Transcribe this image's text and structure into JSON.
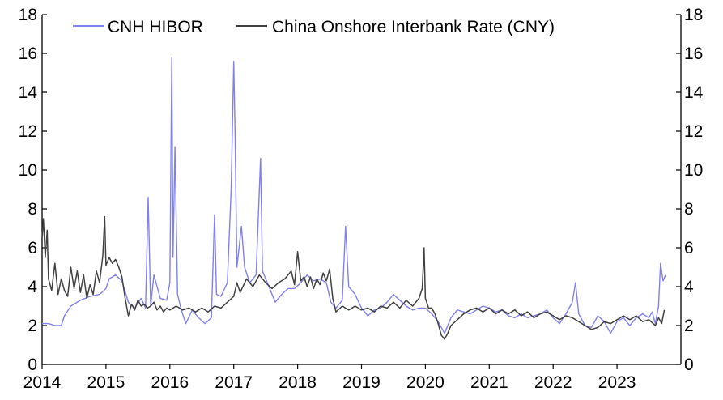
{
  "chart_data": {
    "type": "line",
    "title": "",
    "xlabel": "",
    "ylabel": "",
    "x_ticks": [
      "2014",
      "2015",
      "2016",
      "2017",
      "2018",
      "2019",
      "2020",
      "2021",
      "2022",
      "2023"
    ],
    "xlim": [
      2014.0,
      2024.0
    ],
    "ylim": [
      0,
      18
    ],
    "y_ticks": [
      0,
      2,
      4,
      6,
      8,
      10,
      12,
      14,
      16,
      18
    ],
    "y_tick_labels": [
      "0",
      "2",
      "4",
      "6",
      "8",
      "10",
      "12",
      "14",
      "16",
      "18"
    ],
    "secondary_y_axis": true,
    "grid": false,
    "legend_position": "top",
    "series": [
      {
        "name": "CNH HIBOR",
        "color": "#8080f0",
        "points": [
          [
            2014.0,
            2.1
          ],
          [
            2014.1,
            2.1
          ],
          [
            2014.2,
            2.0
          ],
          [
            2014.3,
            2.0
          ],
          [
            2014.35,
            2.5
          ],
          [
            2014.45,
            3.0
          ],
          [
            2014.6,
            3.3
          ],
          [
            2014.75,
            3.5
          ],
          [
            2014.9,
            3.6
          ],
          [
            2015.0,
            3.9
          ],
          [
            2015.05,
            4.4
          ],
          [
            2015.15,
            4.6
          ],
          [
            2015.25,
            4.3
          ],
          [
            2015.35,
            3.2
          ],
          [
            2015.45,
            2.9
          ],
          [
            2015.55,
            3.4
          ],
          [
            2015.62,
            2.9
          ],
          [
            2015.66,
            8.6
          ],
          [
            2015.7,
            3.0
          ],
          [
            2015.75,
            4.6
          ],
          [
            2015.85,
            3.4
          ],
          [
            2015.95,
            3.3
          ],
          [
            2016.0,
            4.2
          ],
          [
            2016.03,
            15.8
          ],
          [
            2016.05,
            5.5
          ],
          [
            2016.08,
            11.2
          ],
          [
            2016.12,
            3.6
          ],
          [
            2016.18,
            2.8
          ],
          [
            2016.25,
            2.1
          ],
          [
            2016.35,
            2.8
          ],
          [
            2016.45,
            2.4
          ],
          [
            2016.55,
            2.1
          ],
          [
            2016.65,
            2.4
          ],
          [
            2016.7,
            7.7
          ],
          [
            2016.73,
            3.6
          ],
          [
            2016.8,
            3.5
          ],
          [
            2016.9,
            4.2
          ],
          [
            2016.96,
            9.0
          ],
          [
            2017.0,
            15.6
          ],
          [
            2017.02,
            12.0
          ],
          [
            2017.05,
            5.0
          ],
          [
            2017.12,
            7.1
          ],
          [
            2017.17,
            5.0
          ],
          [
            2017.25,
            4.2
          ],
          [
            2017.35,
            4.6
          ],
          [
            2017.42,
            10.6
          ],
          [
            2017.45,
            4.8
          ],
          [
            2017.55,
            4.0
          ],
          [
            2017.65,
            3.2
          ],
          [
            2017.75,
            3.6
          ],
          [
            2017.85,
            3.9
          ],
          [
            2017.95,
            3.9
          ],
          [
            2018.05,
            4.2
          ],
          [
            2018.15,
            4.6
          ],
          [
            2018.25,
            4.3
          ],
          [
            2018.35,
            4.4
          ],
          [
            2018.45,
            4.2
          ],
          [
            2018.52,
            3.2
          ],
          [
            2018.6,
            2.9
          ],
          [
            2018.7,
            3.3
          ],
          [
            2018.75,
            7.1
          ],
          [
            2018.8,
            4.0
          ],
          [
            2018.9,
            3.6
          ],
          [
            2019.0,
            2.9
          ],
          [
            2019.1,
            2.5
          ],
          [
            2019.2,
            2.8
          ],
          [
            2019.3,
            2.9
          ],
          [
            2019.4,
            3.2
          ],
          [
            2019.5,
            3.6
          ],
          [
            2019.6,
            3.3
          ],
          [
            2019.7,
            3.0
          ],
          [
            2019.8,
            2.8
          ],
          [
            2019.9,
            2.9
          ],
          [
            2020.0,
            2.9
          ],
          [
            2020.1,
            2.6
          ],
          [
            2020.2,
            2.2
          ],
          [
            2020.3,
            1.6
          ],
          [
            2020.4,
            2.4
          ],
          [
            2020.5,
            2.8
          ],
          [
            2020.6,
            2.7
          ],
          [
            2020.7,
            2.6
          ],
          [
            2020.8,
            2.8
          ],
          [
            2020.9,
            3.0
          ],
          [
            2021.0,
            2.9
          ],
          [
            2021.1,
            2.7
          ],
          [
            2021.2,
            2.8
          ],
          [
            2021.3,
            2.5
          ],
          [
            2021.4,
            2.4
          ],
          [
            2021.5,
            2.6
          ],
          [
            2021.6,
            2.4
          ],
          [
            2021.7,
            2.5
          ],
          [
            2021.8,
            2.6
          ],
          [
            2021.9,
            2.8
          ],
          [
            2022.0,
            2.4
          ],
          [
            2022.1,
            2.1
          ],
          [
            2022.2,
            2.6
          ],
          [
            2022.3,
            3.2
          ],
          [
            2022.35,
            4.2
          ],
          [
            2022.4,
            2.6
          ],
          [
            2022.5,
            2.0
          ],
          [
            2022.6,
            1.9
          ],
          [
            2022.7,
            2.5
          ],
          [
            2022.8,
            2.2
          ],
          [
            2022.9,
            1.6
          ],
          [
            2023.0,
            2.2
          ],
          [
            2023.1,
            2.4
          ],
          [
            2023.2,
            2.0
          ],
          [
            2023.3,
            2.4
          ],
          [
            2023.4,
            2.6
          ],
          [
            2023.5,
            2.4
          ],
          [
            2023.55,
            2.7
          ],
          [
            2023.6,
            2.1
          ],
          [
            2023.65,
            3.0
          ],
          [
            2023.68,
            5.2
          ],
          [
            2023.72,
            4.3
          ],
          [
            2023.76,
            4.6
          ]
        ]
      },
      {
        "name": "China Onshore Interbank Rate (CNY)",
        "color": "#404040",
        "points": [
          [
            2014.0,
            6.5
          ],
          [
            2014.02,
            7.5
          ],
          [
            2014.05,
            5.5
          ],
          [
            2014.08,
            6.9
          ],
          [
            2014.1,
            4.4
          ],
          [
            2014.15,
            3.8
          ],
          [
            2014.2,
            5.2
          ],
          [
            2014.25,
            3.6
          ],
          [
            2014.3,
            4.4
          ],
          [
            2014.35,
            3.8
          ],
          [
            2014.4,
            3.5
          ],
          [
            2014.45,
            5.0
          ],
          [
            2014.5,
            3.9
          ],
          [
            2014.55,
            4.8
          ],
          [
            2014.6,
            3.7
          ],
          [
            2014.65,
            4.6
          ],
          [
            2014.7,
            3.4
          ],
          [
            2014.75,
            4.1
          ],
          [
            2014.8,
            3.6
          ],
          [
            2014.85,
            4.8
          ],
          [
            2014.9,
            4.2
          ],
          [
            2014.95,
            5.6
          ],
          [
            2014.98,
            7.6
          ],
          [
            2015.0,
            5.1
          ],
          [
            2015.05,
            5.5
          ],
          [
            2015.1,
            5.2
          ],
          [
            2015.15,
            5.4
          ],
          [
            2015.2,
            5.0
          ],
          [
            2015.25,
            4.5
          ],
          [
            2015.3,
            3.4
          ],
          [
            2015.35,
            2.5
          ],
          [
            2015.4,
            3.1
          ],
          [
            2015.45,
            2.8
          ],
          [
            2015.5,
            3.3
          ],
          [
            2015.55,
            3.0
          ],
          [
            2015.6,
            3.1
          ],
          [
            2015.65,
            2.9
          ],
          [
            2015.7,
            3.0
          ],
          [
            2015.75,
            3.2
          ],
          [
            2015.8,
            2.8
          ],
          [
            2015.85,
            3.0
          ],
          [
            2015.9,
            2.7
          ],
          [
            2015.95,
            2.9
          ],
          [
            2016.0,
            2.8
          ],
          [
            2016.1,
            3.0
          ],
          [
            2016.2,
            2.8
          ],
          [
            2016.3,
            2.9
          ],
          [
            2016.4,
            2.7
          ],
          [
            2016.5,
            2.9
          ],
          [
            2016.6,
            2.7
          ],
          [
            2016.7,
            3.0
          ],
          [
            2016.8,
            2.9
          ],
          [
            2016.9,
            3.2
          ],
          [
            2017.0,
            3.5
          ],
          [
            2017.05,
            4.2
          ],
          [
            2017.1,
            3.7
          ],
          [
            2017.2,
            4.4
          ],
          [
            2017.3,
            4.0
          ],
          [
            2017.4,
            4.6
          ],
          [
            2017.5,
            4.2
          ],
          [
            2017.6,
            3.9
          ],
          [
            2017.7,
            4.2
          ],
          [
            2017.8,
            4.4
          ],
          [
            2017.9,
            4.8
          ],
          [
            2017.95,
            4.1
          ],
          [
            2018.0,
            5.8
          ],
          [
            2018.05,
            4.3
          ],
          [
            2018.1,
            4.5
          ],
          [
            2018.15,
            4.0
          ],
          [
            2018.2,
            4.5
          ],
          [
            2018.25,
            3.9
          ],
          [
            2018.3,
            4.4
          ],
          [
            2018.35,
            4.1
          ],
          [
            2018.4,
            4.7
          ],
          [
            2018.45,
            4.3
          ],
          [
            2018.5,
            4.9
          ],
          [
            2018.55,
            3.4
          ],
          [
            2018.6,
            2.7
          ],
          [
            2018.7,
            3.0
          ],
          [
            2018.8,
            2.8
          ],
          [
            2018.9,
            3.0
          ],
          [
            2019.0,
            2.8
          ],
          [
            2019.1,
            2.9
          ],
          [
            2019.2,
            2.7
          ],
          [
            2019.3,
            3.0
          ],
          [
            2019.4,
            2.9
          ],
          [
            2019.5,
            3.2
          ],
          [
            2019.6,
            2.9
          ],
          [
            2019.7,
            3.3
          ],
          [
            2019.8,
            3.0
          ],
          [
            2019.9,
            3.4
          ],
          [
            2019.95,
            3.9
          ],
          [
            2019.98,
            6.0
          ],
          [
            2020.0,
            3.4
          ],
          [
            2020.05,
            2.9
          ],
          [
            2020.1,
            2.9
          ],
          [
            2020.15,
            2.6
          ],
          [
            2020.2,
            2.1
          ],
          [
            2020.25,
            1.5
          ],
          [
            2020.3,
            1.3
          ],
          [
            2020.35,
            1.6
          ],
          [
            2020.4,
            2.0
          ],
          [
            2020.5,
            2.3
          ],
          [
            2020.6,
            2.6
          ],
          [
            2020.7,
            2.8
          ],
          [
            2020.8,
            2.9
          ],
          [
            2020.9,
            2.7
          ],
          [
            2021.0,
            2.9
          ],
          [
            2021.1,
            2.6
          ],
          [
            2021.2,
            2.8
          ],
          [
            2021.3,
            2.6
          ],
          [
            2021.4,
            2.8
          ],
          [
            2021.5,
            2.5
          ],
          [
            2021.6,
            2.7
          ],
          [
            2021.7,
            2.4
          ],
          [
            2021.8,
            2.6
          ],
          [
            2021.9,
            2.7
          ],
          [
            2022.0,
            2.5
          ],
          [
            2022.1,
            2.3
          ],
          [
            2022.2,
            2.5
          ],
          [
            2022.3,
            2.4
          ],
          [
            2022.4,
            2.2
          ],
          [
            2022.5,
            2.0
          ],
          [
            2022.6,
            1.8
          ],
          [
            2022.7,
            1.9
          ],
          [
            2022.8,
            2.2
          ],
          [
            2022.9,
            2.1
          ],
          [
            2023.0,
            2.3
          ],
          [
            2023.1,
            2.5
          ],
          [
            2023.2,
            2.3
          ],
          [
            2023.3,
            2.5
          ],
          [
            2023.4,
            2.2
          ],
          [
            2023.5,
            2.3
          ],
          [
            2023.6,
            2.0
          ],
          [
            2023.65,
            2.4
          ],
          [
            2023.7,
            2.1
          ],
          [
            2023.74,
            2.8
          ]
        ]
      }
    ]
  }
}
